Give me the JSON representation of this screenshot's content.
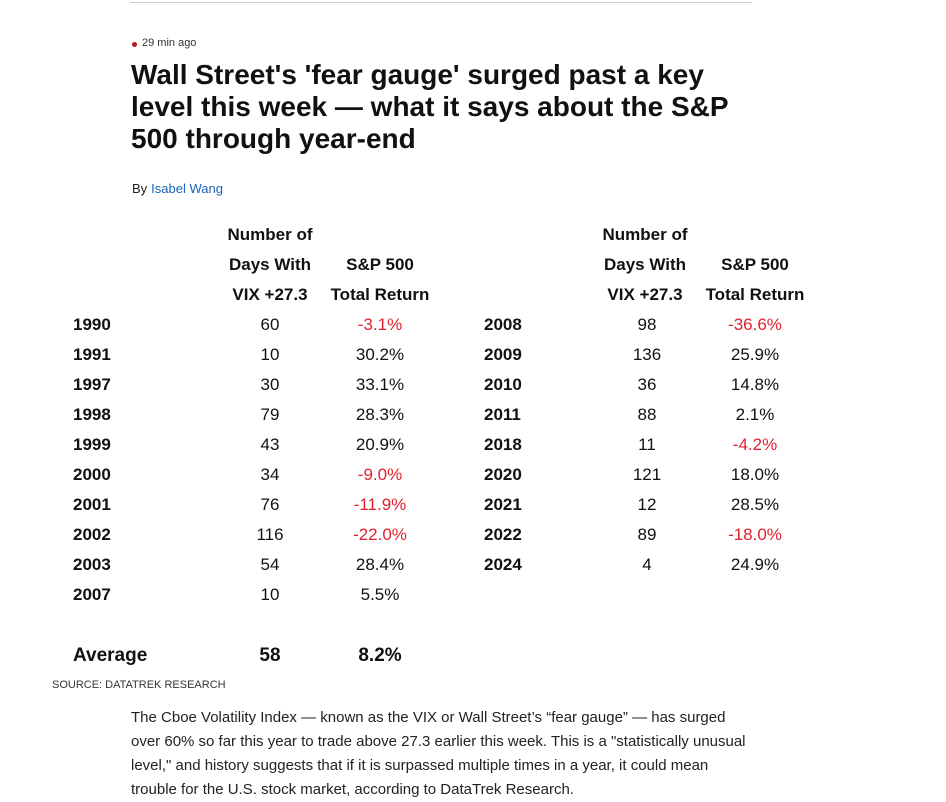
{
  "article": {
    "timestamp": "29 min ago",
    "title": "Wall Street's 'fear gauge' surged past a key level this week — what it says about the S&P 500 through year-end",
    "by_label": "By",
    "author": "Isabel Wang",
    "accent_color": "#c0131c"
  },
  "table": {
    "headers": {
      "days": [
        "Number of",
        "Days With",
        "VIX +27.3"
      ],
      "return": [
        "S&P 500",
        "Total Return"
      ]
    },
    "left_rows": [
      {
        "year": "1990",
        "days": "60",
        "ret": "-3.1%"
      },
      {
        "year": "1991",
        "days": "10",
        "ret": "30.2%"
      },
      {
        "year": "1997",
        "days": "30",
        "ret": "33.1%"
      },
      {
        "year": "1998",
        "days": "79",
        "ret": "28.3%"
      },
      {
        "year": "1999",
        "days": "43",
        "ret": "20.9%"
      },
      {
        "year": "2000",
        "days": "34",
        "ret": "-9.0%"
      },
      {
        "year": "2001",
        "days": "76",
        "ret": "-11.9%"
      },
      {
        "year": "2002",
        "days": "116",
        "ret": "-22.0%"
      },
      {
        "year": "2003",
        "days": "54",
        "ret": "28.4%"
      },
      {
        "year": "2007",
        "days": "10",
        "ret": "5.5%"
      }
    ],
    "right_rows": [
      {
        "year": "2008",
        "days": "98",
        "ret": "-36.6%"
      },
      {
        "year": "2009",
        "days": "136",
        "ret": "25.9%"
      },
      {
        "year": "2010",
        "days": "36",
        "ret": "14.8%"
      },
      {
        "year": "2011",
        "days": "88",
        "ret": "2.1%"
      },
      {
        "year": "2018",
        "days": "11",
        "ret": "-4.2%"
      },
      {
        "year": "2020",
        "days": "121",
        "ret": "18.0%"
      },
      {
        "year": "2021",
        "days": "12",
        "ret": "28.5%"
      },
      {
        "year": "2022",
        "days": "89",
        "ret": "-18.0%"
      },
      {
        "year": "2024",
        "days": "4",
        "ret": "24.9%"
      }
    ],
    "average": {
      "label": "Average",
      "days": "58",
      "ret": "8.2%"
    },
    "negative_color": "#e0202e"
  },
  "source": "SOURCE: DATATREK RESEARCH",
  "body_paragraph": "The Cboe Volatility Index — known as the VIX or Wall Street’s “fear gauge” — has surged over 60% so far this year to trade above 27.3 earlier this week. This is a \"statistically unusual level,\" and history suggests that if it is surpassed multiple times in a year, it could mean trouble for the U.S. stock market, according to DataTrek Research."
}
